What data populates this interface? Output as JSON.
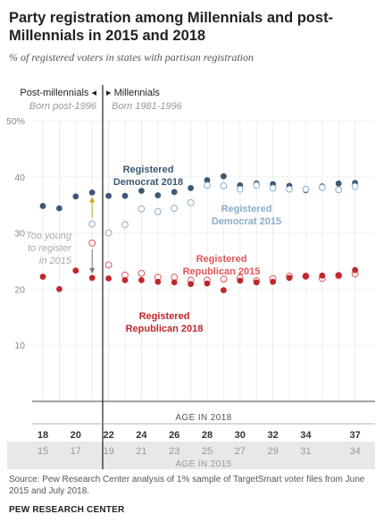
{
  "title": "Party registration among Millennials and post-Millennials in 2015 and 2018",
  "subtitle": "% of registered voters in states with partisan registration",
  "source": "Source: Pew Research Center analysis of 1% sample of TargetSmart voter files from June 2015 and July 2018.",
  "credit": "PEW RESEARCH CENTER",
  "colors": {
    "dem2018": "#3c5873",
    "dem2015": "#8aaec8",
    "rep2018": "#c0272d",
    "rep2015": "#e05558",
    "grid": "#dddddd",
    "band2015": "#e8e8e8"
  },
  "chart_data": {
    "type": "scatter",
    "ylim": [
      0,
      50
    ],
    "y_ticks": [
      10,
      20,
      30,
      40,
      50
    ],
    "y_tick_labels": [
      "10",
      "20",
      "30",
      "40",
      "50%"
    ],
    "x_ages_2018": [
      18,
      19,
      20,
      21,
      22,
      23,
      24,
      25,
      26,
      27,
      28,
      29,
      30,
      31,
      32,
      33,
      34,
      35,
      36,
      37
    ],
    "x_ticks_2018": [
      18,
      20,
      22,
      24,
      26,
      28,
      30,
      32,
      34,
      37
    ],
    "x_ticks_2015": [
      15,
      17,
      19,
      21,
      23,
      25,
      27,
      29,
      31,
      34
    ],
    "xlabel_2018": "AGE IN 2018",
    "xlabel_2015": "AGE IN 2015",
    "divider_labels": {
      "left": "Post-millennials",
      "left_sub": "Born post-1996",
      "right": "Millennials",
      "right_sub": "Born 1981-1996"
    },
    "too_young_note": "Too young to register in 2015",
    "series": [
      {
        "name": "Registered Democrat 2018",
        "filled": true,
        "x": [
          18,
          19,
          20,
          21,
          22,
          23,
          24,
          25,
          26,
          27,
          28,
          29,
          30,
          31,
          32,
          33,
          34,
          35,
          36,
          37
        ],
        "values": [
          34.8,
          34.4,
          36.5,
          37.2,
          36.6,
          36.6,
          37.5,
          36.7,
          37.3,
          38.0,
          39.4,
          40.1,
          38.5,
          38.8,
          38.7,
          38.4,
          37.6,
          38.3,
          38.8,
          38.9
        ]
      },
      {
        "name": "Registered Democrat 2015",
        "filled": false,
        "x": [
          21,
          22,
          23,
          24,
          25,
          26,
          27,
          28,
          29,
          30,
          31,
          32,
          33,
          34,
          35,
          36,
          37
        ],
        "values": [
          31.6,
          30.0,
          31.5,
          34.3,
          33.8,
          34.4,
          35.4,
          38.5,
          38.4,
          37.8,
          38.5,
          38.0,
          37.8,
          37.8,
          38.1,
          37.7,
          38.3
        ]
      },
      {
        "name": "Registered Republican 2015",
        "filled": false,
        "x": [
          21,
          22,
          23,
          24,
          25,
          26,
          27,
          28,
          29,
          30,
          31,
          32,
          33,
          34,
          35,
          36,
          37
        ],
        "values": [
          28.2,
          24.3,
          22.5,
          22.8,
          22.1,
          22.1,
          21.6,
          21.6,
          21.8,
          22.0,
          21.5,
          21.9,
          22.3,
          22.3,
          21.9,
          22.4,
          22.7
        ]
      },
      {
        "name": "Registered Republican 2018",
        "filled": true,
        "x": [
          18,
          19,
          20,
          21,
          22,
          23,
          24,
          25,
          26,
          27,
          28,
          29,
          30,
          31,
          32,
          33,
          34,
          35,
          36,
          37
        ],
        "values": [
          22.2,
          20.0,
          23.3,
          22.0,
          21.9,
          21.6,
          21.6,
          21.3,
          21.2,
          20.9,
          21.0,
          19.8,
          21.5,
          21.2,
          21.3,
          22.0,
          22.3,
          22.4,
          22.5,
          23.4
        ]
      }
    ],
    "series_labels": [
      "Registered Democrat 2018",
      "Registered Democrat 2015",
      "Registered Republican 2015",
      "Registered Republican 2018"
    ]
  }
}
